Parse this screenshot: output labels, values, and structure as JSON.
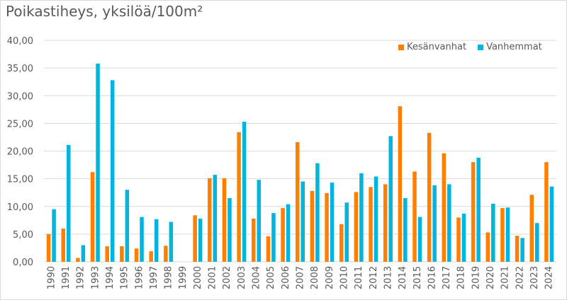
{
  "chart_data": {
    "type": "bar",
    "title": "Poikastiheys, yksilöä/100m²",
    "xlabel": "",
    "ylabel": "",
    "ylim": [
      0,
      40
    ],
    "yticks": [
      "0,00",
      "5,00",
      "10,00",
      "15,00",
      "20,00",
      "25,00",
      "30,00",
      "35,00",
      "40,00"
    ],
    "grid": true,
    "legend": "top-right",
    "categories": [
      "1990",
      "1991",
      "1992",
      "1993",
      "1994",
      "1995",
      "1996",
      "1997",
      "1998",
      "1999",
      "2000",
      "2001",
      "2002",
      "2003",
      "2004",
      "2005",
      "2006",
      "2007",
      "2008",
      "2009",
      "2010",
      "2011",
      "2012",
      "2013",
      "2014",
      "2015",
      "2016",
      "2017",
      "2018",
      "2019",
      "2020",
      "2021",
      "2022",
      "2023",
      "2024"
    ],
    "series": [
      {
        "name": "Kesänvanhat",
        "color": "#ff8000",
        "values": [
          5.0,
          6.0,
          0.7,
          16.2,
          2.8,
          2.8,
          2.4,
          1.9,
          2.9,
          null,
          8.4,
          15.1,
          15.1,
          23.4,
          7.8,
          4.6,
          9.7,
          21.6,
          12.8,
          12.4,
          6.8,
          12.6,
          13.5,
          14.0,
          28.1,
          16.3,
          23.3,
          19.6,
          8.0,
          18.0,
          5.3,
          9.7,
          4.7,
          12.1,
          18.0
        ]
      },
      {
        "name": "Vanhemmat",
        "color": "#00b4e0",
        "values": [
          9.5,
          21.1,
          3.0,
          35.8,
          32.8,
          13.0,
          8.1,
          7.7,
          7.2,
          null,
          7.8,
          15.7,
          11.5,
          25.3,
          14.8,
          8.8,
          10.4,
          14.5,
          17.8,
          14.3,
          10.7,
          16.0,
          15.4,
          22.7,
          11.5,
          8.1,
          13.8,
          14.0,
          8.7,
          18.8,
          10.5,
          9.8,
          4.3,
          7.0,
          13.6
        ]
      }
    ]
  }
}
